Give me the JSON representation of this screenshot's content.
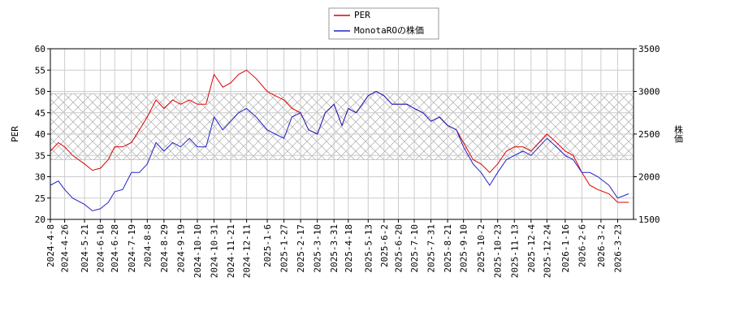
{
  "chart_data": {
    "type": "line",
    "x": [
      "2024-4-8",
      "2024-4-18",
      "2024-4-26",
      "2024-5-6",
      "2024-5-21",
      "2024-5-31",
      "2024-6-10",
      "2024-6-20",
      "2024-6-28",
      "2024-7-8",
      "2024-7-19",
      "2024-7-29",
      "2024-8-8",
      "2024-8-19",
      "2024-8-29",
      "2024-9-9",
      "2024-9-19",
      "2024-9-30",
      "2024-10-10",
      "2024-10-21",
      "2024-10-31",
      "2024-11-11",
      "2024-11-21",
      "2024-12-1",
      "2024-12-11",
      "2024-12-23",
      "2025-1-6",
      "2025-1-16",
      "2025-1-27",
      "2025-2-6",
      "2025-2-17",
      "2025-2-27",
      "2025-3-10",
      "2025-3-20",
      "2025-3-31",
      "2025-4-10",
      "2025-4-18",
      "2025-4-28",
      "2025-5-13",
      "2025-5-23",
      "2025-6-2",
      "2025-6-12",
      "2025-6-20",
      "2025-7-1",
      "2025-7-10",
      "2025-7-21",
      "2025-7-31",
      "2025-8-11",
      "2025-8-21",
      "2025-9-1",
      "2025-9-10",
      "2025-9-22",
      "2025-10-2",
      "2025-10-13",
      "2025-10-23",
      "2025-11-3",
      "2025-11-13",
      "2025-11-24",
      "2025-12-4",
      "2025-12-24",
      "2026-1-5",
      "2026-1-16",
      "2026-1-26",
      "2026-2-6",
      "2026-2-16",
      "2026-2-26",
      "2026-3-12",
      "2026-3-23",
      "2026-4-6"
    ],
    "series": [
      {
        "name": "PER",
        "color": "#dd0000",
        "values": [
          36,
          38,
          37,
          35,
          33,
          31.5,
          32,
          34,
          37,
          37,
          38,
          41,
          44,
          48,
          46,
          48,
          47,
          48,
          47,
          47,
          54,
          51,
          52,
          54,
          55,
          53,
          50,
          49,
          48,
          46,
          45,
          41,
          40,
          45,
          47,
          42,
          46,
          45,
          49,
          50,
          49,
          47,
          47,
          47,
          46,
          45,
          43,
          44,
          42,
          41,
          38,
          34,
          33,
          31,
          33,
          36,
          37,
          37,
          36,
          40,
          38,
          36,
          35,
          31,
          28,
          27,
          26,
          24,
          24
        ]
      },
      {
        "name": "MonotaROの株価",
        "color": "#2222cc",
        "axis": "y2",
        "values": [
          1900,
          1950,
          1850,
          1750,
          1675,
          1600,
          1625,
          1700,
          1825,
          1850,
          2050,
          2050,
          2150,
          2400,
          2300,
          2400,
          2350,
          2450,
          2350,
          2350,
          2700,
          2550,
          2650,
          2750,
          2800,
          2700,
          2550,
          2500,
          2450,
          2700,
          2750,
          2550,
          2500,
          2750,
          2850,
          2600,
          2800,
          2750,
          2950,
          3000,
          2950,
          2850,
          2850,
          2850,
          2800,
          2750,
          2650,
          2700,
          2600,
          2550,
          2350,
          2150,
          2050,
          1900,
          2050,
          2200,
          2250,
          2300,
          2250,
          2450,
          2350,
          2250,
          2200,
          2050,
          2050,
          2000,
          1900,
          1750,
          1800
        ]
      }
    ],
    "xlim": [
      "2024-4-8",
      "2026-4-12"
    ],
    "xticks": [
      "2024-4-8",
      "2024-4-26",
      "2024-5-21",
      "2024-6-10",
      "2024-6-28",
      "2024-7-19",
      "2024-8-8",
      "2024-8-29",
      "2024-9-19",
      "2024-10-10",
      "2024-10-31",
      "2024-11-21",
      "2024-12-11",
      "2025-1-6",
      "2025-1-27",
      "2025-2-17",
      "2025-3-10",
      "2025-3-31",
      "2025-4-18",
      "2025-5-13",
      "2025-6-2",
      "2025-6-20",
      "2025-7-10",
      "2025-7-31",
      "2025-8-21",
      "2025-9-10",
      "2025-10-2",
      "2025-10-23",
      "2025-11-13",
      "2025-12-4",
      "2025-12-24",
      "2026-1-16",
      "2026-2-6",
      "2026-3-2",
      "2026-3-23"
    ],
    "ylim": [
      20,
      60
    ],
    "yticks": [
      20,
      25,
      30,
      35,
      40,
      45,
      50,
      55,
      60
    ],
    "y2lim": [
      1500,
      3500
    ],
    "y2ticks": [
      1500,
      2000,
      2500,
      3000,
      3500
    ],
    "ylabel": "PER",
    "y2label": "株価",
    "shaded_range": [
      34,
      49.5
    ],
    "grid": true,
    "legend": "top"
  }
}
